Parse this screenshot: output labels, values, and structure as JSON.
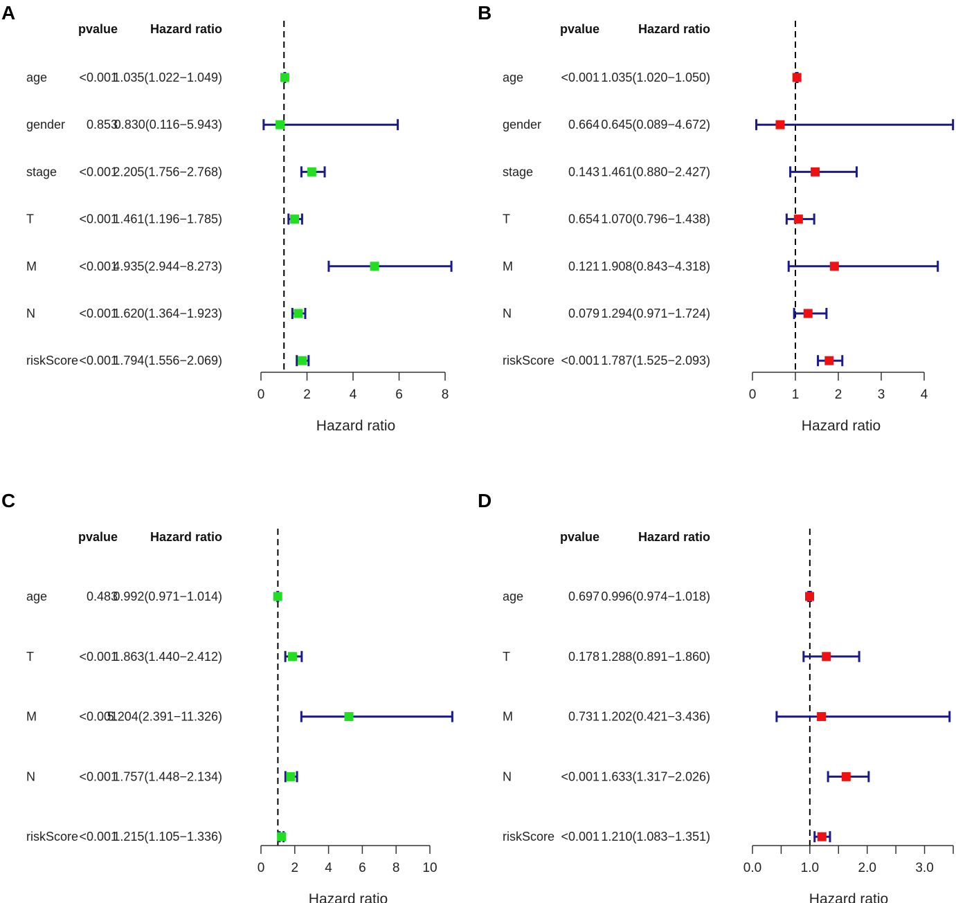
{
  "chart_data": [
    {
      "type": "forest",
      "panel": "A",
      "col_headers": {
        "pvalue": "pvalue",
        "hr": "Hazard ratio"
      },
      "xlabel": "Hazard ratio",
      "xlim": [
        0,
        8
      ],
      "ticks": [
        0,
        2,
        4,
        6,
        8
      ],
      "tick_labels": [
        "0",
        "2",
        "4",
        "6",
        "8"
      ],
      "minor_ticks": [],
      "reference": 1,
      "marker_color": "#22dd22",
      "rows": [
        {
          "label": "age",
          "pvalue": "<0.001",
          "hr_text": "1.035(1.022−1.049)",
          "hr": 1.035,
          "lower": 1.022,
          "upper": 1.049
        },
        {
          "label": "gender",
          "pvalue": "0.853",
          "hr_text": "0.830(0.116−5.943)",
          "hr": 0.83,
          "lower": 0.116,
          "upper": 5.943
        },
        {
          "label": "stage",
          "pvalue": "<0.001",
          "hr_text": "2.205(1.756−2.768)",
          "hr": 2.205,
          "lower": 1.756,
          "upper": 2.768
        },
        {
          "label": "T",
          "pvalue": "<0.001",
          "hr_text": "1.461(1.196−1.785)",
          "hr": 1.461,
          "lower": 1.196,
          "upper": 1.785
        },
        {
          "label": "M",
          "pvalue": "<0.001",
          "hr_text": "4.935(2.944−8.273)",
          "hr": 4.935,
          "lower": 2.944,
          "upper": 8.273
        },
        {
          "label": "N",
          "pvalue": "<0.001",
          "hr_text": "1.620(1.364−1.923)",
          "hr": 1.62,
          "lower": 1.364,
          "upper": 1.923
        },
        {
          "label": "riskScore",
          "pvalue": "<0.001",
          "hr_text": "1.794(1.556−2.069)",
          "hr": 1.794,
          "lower": 1.556,
          "upper": 2.069
        }
      ]
    },
    {
      "type": "forest",
      "panel": "B",
      "col_headers": {
        "pvalue": "pvalue",
        "hr": "Hazard ratio"
      },
      "xlabel": "Hazard ratio",
      "xlim": [
        0,
        4
      ],
      "ticks": [
        0,
        1,
        2,
        3,
        4
      ],
      "tick_labels": [
        "0",
        "1",
        "2",
        "3",
        "4"
      ],
      "minor_ticks": [],
      "reference": 1,
      "marker_color": "#ee1111",
      "rows": [
        {
          "label": "age",
          "pvalue": "<0.001",
          "hr_text": "1.035(1.020−1.050)",
          "hr": 1.035,
          "lower": 1.02,
          "upper": 1.05
        },
        {
          "label": "gender",
          "pvalue": "0.664",
          "hr_text": "0.645(0.089−4.672)",
          "hr": 0.645,
          "lower": 0.089,
          "upper": 4.672
        },
        {
          "label": "stage",
          "pvalue": "0.143",
          "hr_text": "1.461(0.880−2.427)",
          "hr": 1.461,
          "lower": 0.88,
          "upper": 2.427
        },
        {
          "label": "T",
          "pvalue": "0.654",
          "hr_text": "1.070(0.796−1.438)",
          "hr": 1.07,
          "lower": 0.796,
          "upper": 1.438
        },
        {
          "label": "M",
          "pvalue": "0.121",
          "hr_text": "1.908(0.843−4.318)",
          "hr": 1.908,
          "lower": 0.843,
          "upper": 4.318
        },
        {
          "label": "N",
          "pvalue": "0.079",
          "hr_text": "1.294(0.971−1.724)",
          "hr": 1.294,
          "lower": 0.971,
          "upper": 1.724
        },
        {
          "label": "riskScore",
          "pvalue": "<0.001",
          "hr_text": "1.787(1.525−2.093)",
          "hr": 1.787,
          "lower": 1.525,
          "upper": 2.093
        }
      ]
    },
    {
      "type": "forest",
      "panel": "C",
      "col_headers": {
        "pvalue": "pvalue",
        "hr": "Hazard ratio"
      },
      "xlabel": "Hazard ratio",
      "xlim": [
        0,
        10
      ],
      "ticks": [
        0,
        2,
        4,
        6,
        8,
        10
      ],
      "tick_labels": [
        "0",
        "2",
        "4",
        "6",
        "8",
        "10"
      ],
      "minor_ticks": [],
      "reference": 1,
      "marker_color": "#22dd22",
      "rows": [
        {
          "label": "age",
          "pvalue": "0.483",
          "hr_text": "0.992(0.971−1.014)",
          "hr": 0.992,
          "lower": 0.971,
          "upper": 1.014
        },
        {
          "label": "T",
          "pvalue": "<0.001",
          "hr_text": "1.863(1.440−2.412)",
          "hr": 1.863,
          "lower": 1.44,
          "upper": 2.412
        },
        {
          "label": "M",
          "pvalue": "<0.001",
          "hr_text": "5.204(2.391−11.326)",
          "hr": 5.204,
          "lower": 2.391,
          "upper": 11.326
        },
        {
          "label": "N",
          "pvalue": "<0.001",
          "hr_text": "1.757(1.448−2.134)",
          "hr": 1.757,
          "lower": 1.448,
          "upper": 2.134
        },
        {
          "label": "riskScore",
          "pvalue": "<0.001",
          "hr_text": "1.215(1.105−1.336)",
          "hr": 1.215,
          "lower": 1.105,
          "upper": 1.336
        }
      ]
    },
    {
      "type": "forest",
      "panel": "D",
      "col_headers": {
        "pvalue": "pvalue",
        "hr": "Hazard ratio"
      },
      "xlabel": "Hazard ratio",
      "xlim": [
        0,
        3.5
      ],
      "ticks": [
        0,
        1,
        2,
        3
      ],
      "tick_labels": [
        "0.0",
        "1.0",
        "2.0",
        "3.0"
      ],
      "minor_ticks": [
        0.5,
        1.5,
        2.5,
        3.5
      ],
      "reference": 1,
      "marker_color": "#ee1111",
      "rows": [
        {
          "label": "age",
          "pvalue": "0.697",
          "hr_text": "0.996(0.974−1.018)",
          "hr": 0.996,
          "lower": 0.974,
          "upper": 1.018
        },
        {
          "label": "T",
          "pvalue": "0.178",
          "hr_text": "1.288(0.891−1.860)",
          "hr": 1.288,
          "lower": 0.891,
          "upper": 1.86
        },
        {
          "label": "M",
          "pvalue": "0.731",
          "hr_text": "1.202(0.421−3.436)",
          "hr": 1.202,
          "lower": 0.421,
          "upper": 3.436
        },
        {
          "label": "N",
          "pvalue": "<0.001",
          "hr_text": "1.633(1.317−2.026)",
          "hr": 1.633,
          "lower": 1.317,
          "upper": 2.026
        },
        {
          "label": "riskScore",
          "pvalue": "<0.001",
          "hr_text": "1.210(1.083−1.351)",
          "hr": 1.21,
          "lower": 1.083,
          "upper": 1.351
        }
      ]
    }
  ]
}
